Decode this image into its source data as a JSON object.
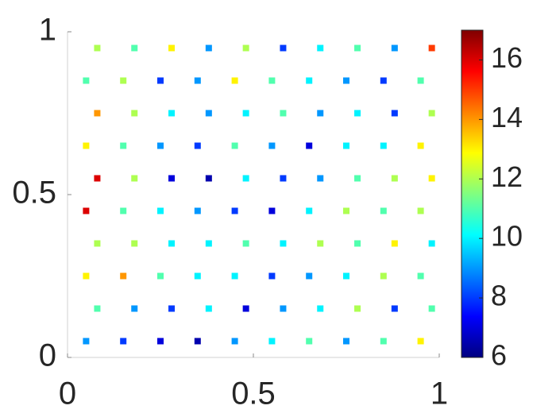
{
  "chart_data": {
    "type": "scatter",
    "x": [
      0.05,
      0.15,
      0.25,
      0.35,
      0.45,
      0.55,
      0.65,
      0.75,
      0.85,
      0.95,
      0.08,
      0.18,
      0.28,
      0.38,
      0.48,
      0.58,
      0.68,
      0.78,
      0.88,
      0.98,
      0.05,
      0.15,
      0.25,
      0.35,
      0.45,
      0.55,
      0.65,
      0.75,
      0.85,
      0.95,
      0.08,
      0.18,
      0.28,
      0.38,
      0.48,
      0.58,
      0.68,
      0.78,
      0.88,
      0.98,
      0.05,
      0.15,
      0.25,
      0.35,
      0.45,
      0.55,
      0.65,
      0.75,
      0.85,
      0.95,
      0.08,
      0.18,
      0.28,
      0.38,
      0.48,
      0.58,
      0.68,
      0.78,
      0.88,
      0.98,
      0.05,
      0.15,
      0.25,
      0.35,
      0.45,
      0.55,
      0.65,
      0.75,
      0.85,
      0.95,
      0.08,
      0.18,
      0.28,
      0.38,
      0.48,
      0.58,
      0.68,
      0.78,
      0.88,
      0.98,
      0.05,
      0.15,
      0.25,
      0.35,
      0.45,
      0.55,
      0.65,
      0.75,
      0.85,
      0.95,
      0.08,
      0.18,
      0.28,
      0.38,
      0.48,
      0.58,
      0.68,
      0.78,
      0.88,
      0.98
    ],
    "y": [
      0.05,
      0.05,
      0.05,
      0.05,
      0.05,
      0.05,
      0.05,
      0.05,
      0.05,
      0.05,
      0.15,
      0.15,
      0.15,
      0.15,
      0.15,
      0.15,
      0.15,
      0.15,
      0.15,
      0.15,
      0.25,
      0.25,
      0.25,
      0.25,
      0.25,
      0.25,
      0.25,
      0.25,
      0.25,
      0.25,
      0.35,
      0.35,
      0.35,
      0.35,
      0.35,
      0.35,
      0.35,
      0.35,
      0.35,
      0.35,
      0.45,
      0.45,
      0.45,
      0.45,
      0.45,
      0.45,
      0.45,
      0.45,
      0.45,
      0.45,
      0.55,
      0.55,
      0.55,
      0.55,
      0.55,
      0.55,
      0.55,
      0.55,
      0.55,
      0.55,
      0.65,
      0.65,
      0.65,
      0.65,
      0.65,
      0.65,
      0.65,
      0.65,
      0.65,
      0.65,
      0.75,
      0.75,
      0.75,
      0.75,
      0.75,
      0.75,
      0.75,
      0.75,
      0.75,
      0.75,
      0.85,
      0.85,
      0.85,
      0.85,
      0.85,
      0.85,
      0.85,
      0.85,
      0.85,
      0.85,
      0.95,
      0.95,
      0.95,
      0.95,
      0.95,
      0.95,
      0.95,
      0.95,
      0.95,
      0.95
    ],
    "values": [
      9,
      8,
      7,
      6.5,
      9,
      10,
      11,
      9,
      11,
      13,
      11,
      9,
      8,
      10,
      7,
      9,
      10,
      12,
      8,
      11,
      13,
      14,
      11,
      10,
      10,
      8,
      9,
      10,
      12,
      11,
      12,
      12,
      10,
      10,
      11,
      10,
      12,
      11,
      13,
      10,
      16,
      11,
      10,
      9,
      8,
      7,
      10,
      12,
      11,
      12,
      16,
      12,
      7,
      6.5,
      10,
      8,
      9,
      11,
      12,
      13,
      13,
      11,
      9,
      8,
      11,
      9,
      7,
      10,
      10,
      13,
      14,
      12,
      10,
      9,
      10,
      11,
      9,
      10,
      8,
      12,
      11,
      12,
      8,
      9,
      13,
      11,
      10,
      9,
      8,
      11,
      12,
      11,
      13,
      9,
      12,
      8,
      10,
      11,
      9,
      15
    ],
    "colormap": "jet",
    "xlim": [
      0,
      1
    ],
    "ylim": [
      0,
      1
    ],
    "xticks": [
      0,
      0.5,
      1
    ],
    "yticks": [
      0,
      0.5,
      1
    ],
    "clim": [
      6,
      17
    ],
    "cticks": [
      6,
      8,
      10,
      12,
      14,
      16
    ]
  }
}
